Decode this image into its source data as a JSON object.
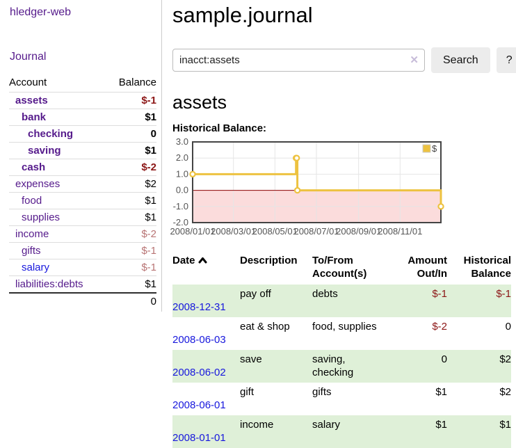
{
  "sidebar": {
    "app_title": "hledger-web",
    "nav_journal": "Journal",
    "accounts": {
      "col_account": "Account",
      "col_balance": "Balance",
      "rows": [
        {
          "account": "assets",
          "balance": "$-1",
          "indent": 1,
          "bold": true,
          "balance_class": "neg-strong",
          "link_new": false
        },
        {
          "account": "bank",
          "balance": "$1",
          "indent": 2,
          "bold": true,
          "balance_class": "",
          "link_new": false
        },
        {
          "account": "checking",
          "balance": "0",
          "indent": 3,
          "bold": true,
          "balance_class": "",
          "link_new": false
        },
        {
          "account": "saving",
          "balance": "$1",
          "indent": 3,
          "bold": true,
          "balance_class": "",
          "link_new": false
        },
        {
          "account": "cash",
          "balance": "$-2",
          "indent": 2,
          "bold": true,
          "balance_class": "neg-strong",
          "link_new": false
        },
        {
          "account": "expenses",
          "balance": "$2",
          "indent": 1,
          "bold": false,
          "balance_class": "",
          "link_new": false
        },
        {
          "account": "food",
          "balance": "$1",
          "indent": 2,
          "bold": false,
          "balance_class": "",
          "link_new": false
        },
        {
          "account": "supplies",
          "balance": "$1",
          "indent": 2,
          "bold": false,
          "balance_class": "",
          "link_new": false
        },
        {
          "account": "income",
          "balance": "$-2",
          "indent": 1,
          "bold": false,
          "balance_class": "neg-soft",
          "link_new": false
        },
        {
          "account": "gifts",
          "balance": "$-1",
          "indent": 2,
          "bold": false,
          "balance_class": "neg-soft",
          "link_new": false
        },
        {
          "account": "salary",
          "balance": "$-1",
          "indent": 2,
          "bold": false,
          "balance_class": "neg-soft",
          "link_new": true
        },
        {
          "account": "liabilities:debts",
          "balance": "$1",
          "indent": 1,
          "bold": false,
          "balance_class": "",
          "link_new": false
        }
      ],
      "total": "0"
    }
  },
  "main": {
    "title": "sample.journal",
    "search": {
      "value": "inacct:assets",
      "clear_icon": "✕",
      "button_label": "Search",
      "help_label": "?"
    },
    "account_heading": "assets",
    "chart_title": "Historical Balance:",
    "chart_data": {
      "type": "line",
      "title": "Historical Balance:",
      "x_range": [
        "2008-01-01",
        "2008-12-31"
      ],
      "ylim": [
        -2,
        3
      ],
      "y_ticks": [
        {
          "value": 3,
          "label": "3.0"
        },
        {
          "value": 2,
          "label": "2.0"
        },
        {
          "value": 1,
          "label": "1.0"
        },
        {
          "value": 0,
          "label": "0.0"
        },
        {
          "value": -1,
          "label": "-1.0"
        },
        {
          "value": -2,
          "label": "-2.0"
        }
      ],
      "x_ticks": [
        {
          "date": "2008-01-01",
          "label": "2008/01/01"
        },
        {
          "date": "2008-03-01",
          "label": "2008/03/01"
        },
        {
          "date": "2008-05-01",
          "label": "2008/05/01"
        },
        {
          "date": "2008-07-01",
          "label": "2008/07/01"
        },
        {
          "date": "2008-09-01",
          "label": "2008/09/01"
        },
        {
          "date": "2008-11-01",
          "label": "2008/11/01"
        }
      ],
      "series": [
        {
          "name": "$",
          "color": "#EDC240",
          "points": [
            [
              "2008-01-01",
              1
            ],
            [
              "2008-06-01",
              2
            ],
            [
              "2008-06-02",
              2
            ],
            [
              "2008-06-03",
              0
            ],
            [
              "2008-12-31",
              -1
            ]
          ]
        }
      ],
      "grid": true,
      "legend_position": "top-right",
      "step": true,
      "negative_region_color": "#fbdcdc",
      "zero_line_color": "#8b0000",
      "grid_color": "#e5e5e5",
      "border_color": "#444444",
      "label_color": "#545454"
    },
    "register": {
      "headers": {
        "date": "Date",
        "description": "Description",
        "accounts": "To/From\nAccount(s)",
        "amount": "Amount\nOut/In",
        "balance": "Historical\nBalance"
      },
      "rows": [
        {
          "date": "2008-12-31",
          "description": "pay off",
          "accounts": "debts",
          "amount": "$-1",
          "balance": "$-1",
          "amount_neg": true,
          "balance_neg": true
        },
        {
          "date": "2008-06-03",
          "description": "eat & shop",
          "accounts": "food, supplies",
          "amount": "$-2",
          "balance": "0",
          "amount_neg": true,
          "balance_neg": false
        },
        {
          "date": "2008-06-02",
          "description": "save",
          "accounts": "saving,\nchecking",
          "amount": "0",
          "balance": "$2",
          "amount_neg": false,
          "balance_neg": false
        },
        {
          "date": "2008-06-01",
          "description": "gift",
          "accounts": "gifts",
          "amount": "$1",
          "balance": "$2",
          "amount_neg": false,
          "balance_neg": false
        },
        {
          "date": "2008-01-01",
          "description": "income",
          "accounts": "salary",
          "amount": "$1",
          "balance": "$1",
          "amount_neg": false,
          "balance_neg": false
        }
      ]
    }
  },
  "colors": {
    "link_visited_purple": "#551a8b",
    "link_blue": "#1717dd",
    "negative_strong_red": "#8c1616",
    "negative_soft_red": "#b87474",
    "row_stripe_green": "#dff0d8",
    "chart_series_yellow": "#EDC240",
    "chart_negative_region_pink": "#fbdcdc",
    "chart_zero_line_red": "#8b0000"
  }
}
